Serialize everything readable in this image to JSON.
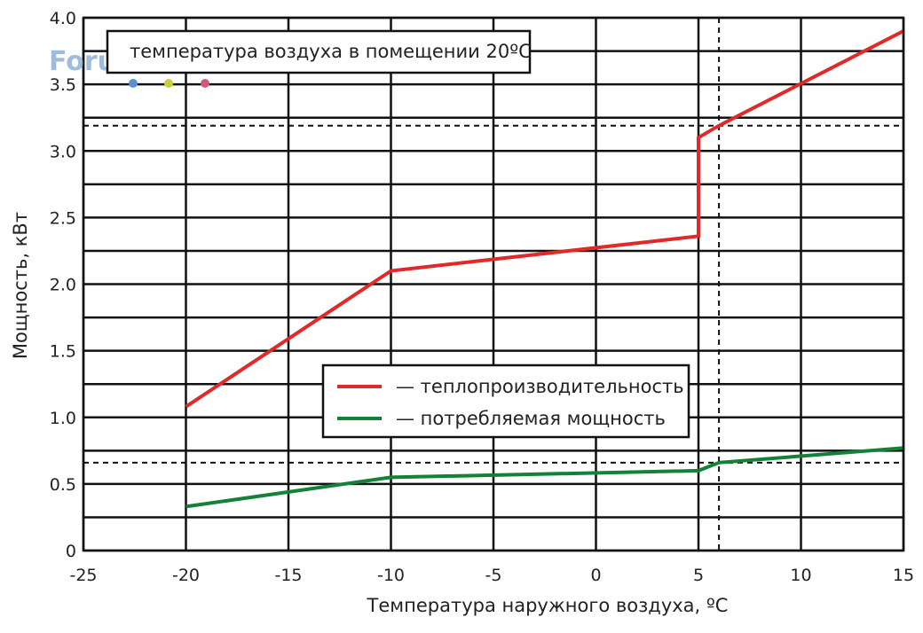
{
  "watermark": {
    "text": "Forum.Domik.ua",
    "dot_colors": [
      "#5b8fd0",
      "#c8cf3a",
      "#d05a7a"
    ]
  },
  "colors": {
    "heating": "#e02a2a",
    "consumption": "#128238",
    "grid": "#111111"
  },
  "chart_data": {
    "type": "line",
    "xlabel": "Температура наружного воздуха, ºС",
    "ylabel": "Мощность, кВт",
    "xlim": [
      -25,
      15
    ],
    "ylim": [
      0,
      4.0
    ],
    "x_ticks": [
      "-25",
      "-20",
      "-15",
      "-10",
      "-5",
      "0",
      "5",
      "10",
      "15"
    ],
    "y_ticks": [
      "0",
      "0.5",
      "1.0",
      "1.5",
      "2.0",
      "2.5",
      "3.0",
      "3.5",
      "4.0"
    ],
    "grid": true,
    "annotation": "температура воздуха в помещении 20ºС",
    "reference_lines": {
      "x": 6,
      "y": [
        3.19,
        0.66
      ]
    },
    "legend_position": "center",
    "series": [
      {
        "name": "— теплопроизводительность",
        "color": "#e02a2a",
        "x": [
          -20,
          -10,
          5,
          5,
          6,
          15
        ],
        "y": [
          1.08,
          2.1,
          2.36,
          3.1,
          3.19,
          3.9
        ]
      },
      {
        "name": "— потребляемая мощность",
        "color": "#128238",
        "x": [
          -20,
          -10,
          5,
          6,
          15
        ],
        "y": [
          0.33,
          0.55,
          0.6,
          0.66,
          0.77
        ]
      }
    ]
  }
}
